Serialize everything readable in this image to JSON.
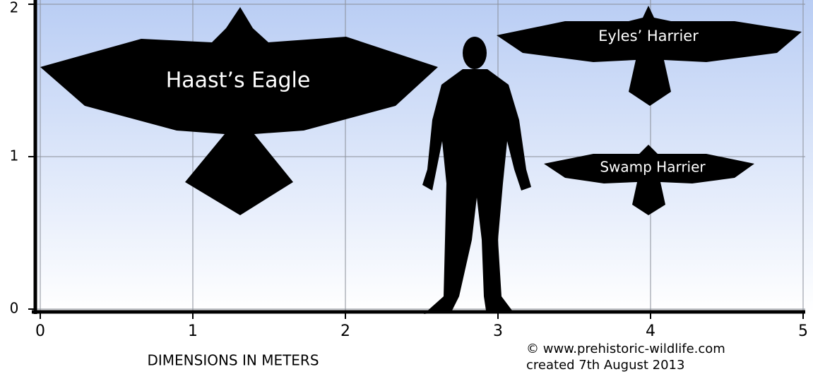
{
  "axes": {
    "x": {
      "ticks": [
        0,
        1,
        2,
        3,
        4,
        5
      ],
      "label": "DIMENSIONS IN METERS"
    },
    "y": {
      "ticks": [
        0,
        1,
        2
      ]
    }
  },
  "silhouettes": [
    {
      "label": "Haast’s Eagle"
    },
    {
      "label": "Eyles’ Harrier"
    },
    {
      "label": "Swamp Harrier"
    }
  ],
  "credit": {
    "site": "© www.prehistoric-wildlife.com",
    "date": "created 7th August 2013"
  }
}
